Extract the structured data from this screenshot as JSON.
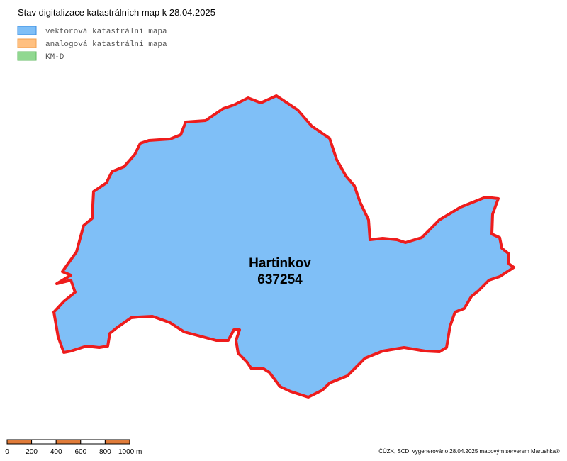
{
  "title": "Stav digitalizace katastrálních map k 28.04.2025",
  "legend": [
    {
      "label": "vektorová katastrální mapa",
      "color": "#7fbff7",
      "border": "#3a8de0"
    },
    {
      "label": "analogová katastrální mapa",
      "color": "#ffc080",
      "border": "#f0a050"
    },
    {
      "label": "KM-D",
      "color": "#90d890",
      "border": "#60b860"
    }
  ],
  "region": {
    "name": "Hartinkov",
    "code": "637254"
  },
  "scale_bar": {
    "labels": [
      "0",
      "200",
      "400",
      "600",
      "800",
      "1000 m"
    ]
  },
  "footer": "ČÚZK, SCD, vygenerováno 28.04.2025 mapovým serverem Marushka®"
}
